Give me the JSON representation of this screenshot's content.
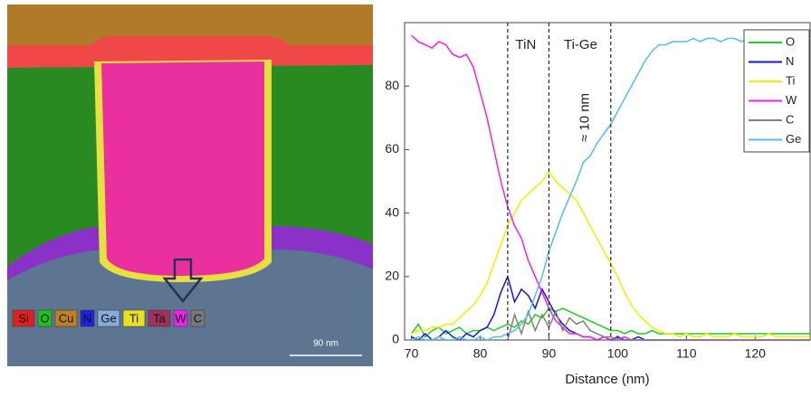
{
  "image": {
    "labels": [
      "Si",
      "O",
      "Cu",
      "N",
      "Ge",
      "Ti",
      "Ta",
      "W",
      "C"
    ],
    "scale_bar": "90 nm"
  },
  "chart_data": {
    "type": "line",
    "xlabel": "Distance (nm)",
    "x": [
      70,
      71,
      72,
      73,
      74,
      75,
      76,
      77,
      78,
      79,
      80,
      81,
      82,
      83,
      84,
      85,
      86,
      87,
      88,
      89,
      90,
      91,
      92,
      93,
      94,
      95,
      96,
      97,
      98,
      99,
      100,
      101,
      102,
      103,
      104,
      105,
      106,
      107,
      108,
      109,
      110,
      111,
      112,
      113,
      114,
      115,
      116,
      117,
      118,
      119,
      120,
      121,
      122,
      123,
      124,
      125,
      126,
      127,
      128
    ],
    "series": [
      {
        "name": "O",
        "color": "#22cc22",
        "values": [
          2,
          5,
          1,
          3,
          4,
          2,
          3,
          4,
          2,
          3,
          3,
          4,
          3,
          4,
          5,
          4,
          6,
          5,
          8,
          7,
          10,
          9,
          10,
          9,
          8,
          7,
          6,
          5,
          4,
          3,
          3,
          2,
          3,
          2,
          2,
          3,
          2,
          2,
          2,
          2,
          2,
          2,
          2,
          2,
          2,
          2,
          2,
          2,
          2,
          2,
          2,
          2,
          2,
          2,
          2,
          2,
          2,
          2,
          2
        ]
      },
      {
        "name": "N",
        "color": "#1414dc",
        "values": [
          1,
          0,
          2,
          0,
          1,
          3,
          1,
          0,
          2,
          1,
          3,
          4,
          8,
          15,
          20,
          12,
          16,
          14,
          10,
          16,
          12,
          8,
          5,
          3,
          2,
          1,
          1,
          0,
          1,
          0,
          1,
          0,
          0,
          1,
          0,
          0,
          0,
          0,
          0,
          0,
          0,
          0,
          0,
          0,
          0,
          0,
          0,
          0,
          0,
          0,
          0,
          0,
          0,
          0,
          0,
          0,
          0,
          0,
          0
        ]
      },
      {
        "name": "Ti",
        "color": "#f2ee00",
        "values": [
          2,
          3,
          3,
          4,
          4,
          5,
          5,
          7,
          9,
          11,
          14,
          18,
          24,
          30,
          36,
          40,
          44,
          46,
          48,
          50,
          53,
          50,
          48,
          46,
          44,
          40,
          36,
          32,
          28,
          24,
          20,
          15,
          11,
          8,
          6,
          4,
          3,
          2,
          2,
          1,
          2,
          1,
          1,
          2,
          1,
          1,
          1,
          2,
          1,
          1,
          1,
          1,
          2,
          1,
          1,
          1,
          1,
          1,
          1
        ]
      },
      {
        "name": "W",
        "color": "#ee22ee",
        "values": [
          96,
          94,
          93,
          92,
          94,
          93,
          90,
          89,
          90,
          86,
          78,
          70,
          60,
          50,
          42,
          36,
          32,
          25,
          20,
          15,
          10,
          6,
          4,
          2,
          2,
          1,
          1,
          0,
          1,
          0,
          0,
          1,
          0,
          0,
          0,
          0,
          0,
          0,
          0,
          0,
          0,
          0,
          0,
          0,
          0,
          0,
          0,
          0,
          0,
          0,
          0,
          0,
          0,
          0,
          0,
          0,
          0,
          0,
          0
        ]
      },
      {
        "name": "C",
        "color": "#808080",
        "values": [
          0,
          0,
          0,
          0,
          0,
          0,
          0,
          0,
          0,
          0,
          0,
          0,
          0,
          0,
          0,
          8,
          2,
          9,
          3,
          8,
          4,
          9,
          3,
          7,
          5,
          6,
          3,
          2,
          1,
          1,
          0,
          0,
          0,
          0,
          0,
          0,
          0,
          0,
          0,
          0,
          0,
          0,
          0,
          0,
          0,
          0,
          0,
          0,
          0,
          0,
          0,
          0,
          0,
          0,
          0,
          0,
          0,
          0,
          0
        ]
      },
      {
        "name": "Ge",
        "color": "#55bbee",
        "values": [
          0,
          1,
          0,
          0,
          1,
          0,
          0,
          1,
          0,
          0,
          1,
          0,
          1,
          1,
          2,
          3,
          5,
          8,
          14,
          20,
          28,
          34,
          40,
          45,
          50,
          56,
          58,
          62,
          65,
          68,
          72,
          76,
          80,
          84,
          88,
          91,
          93,
          93,
          94,
          94,
          94,
          95,
          94,
          95,
          95,
          94,
          95,
          95,
          94,
          95,
          95,
          94,
          95,
          95,
          95,
          94,
          95,
          95,
          95
        ]
      }
    ],
    "xlim": [
      69,
      128
    ],
    "ylim": [
      0,
      100
    ],
    "xticks": [
      70,
      80,
      90,
      100,
      110,
      120
    ],
    "yticks": [
      0,
      20,
      40,
      60,
      80
    ],
    "markers": [
      84,
      90,
      99
    ],
    "annotations": [
      "TiN",
      "Ti-Ge",
      "≈ 10 nm"
    ],
    "legend": "upper right"
  }
}
